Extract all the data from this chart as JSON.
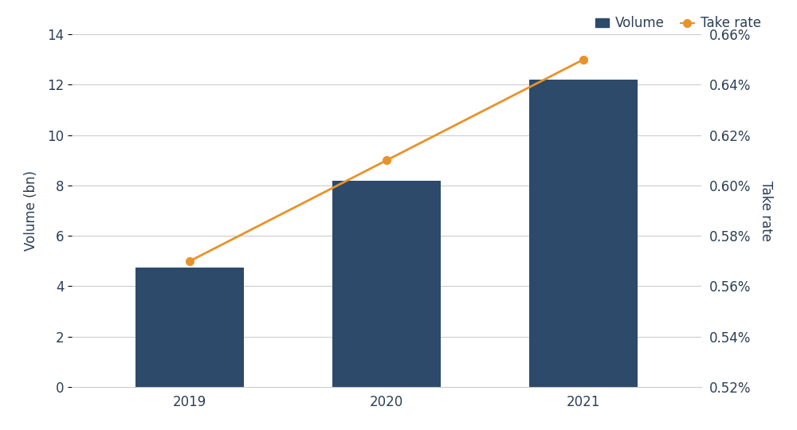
{
  "years": [
    2019,
    2020,
    2021
  ],
  "volume": [
    4.75,
    8.2,
    12.2
  ],
  "take_rate": [
    0.0057,
    0.0061,
    0.0065
  ],
  "bar_color": "#2d4a6b",
  "line_color": "#e8922a",
  "marker_color": "#e8922a",
  "background_color": "#ffffff",
  "grid_color": "#cccccc",
  "text_color": "#2d3f55",
  "ylabel_left": "Volume (bn)",
  "ylabel_right": "Take rate",
  "ylim_left": [
    0,
    14
  ],
  "ylim_right": [
    0.0052,
    0.0066
  ],
  "yticks_left": [
    0,
    2,
    4,
    6,
    8,
    10,
    12,
    14
  ],
  "yticks_right": [
    0.0052,
    0.0054,
    0.0056,
    0.0058,
    0.006,
    0.0062,
    0.0064,
    0.0066
  ],
  "ytick_right_labels": [
    "0.52%",
    "0.54%",
    "0.56%",
    "0.58%",
    "0.60%",
    "0.62%",
    "0.64%",
    "0.66%"
  ],
  "legend_volume": "Volume",
  "legend_take_rate": "Take rate",
  "bar_width": 0.55,
  "figsize": [
    10.0,
    5.4
  ],
  "dpi": 100,
  "axis_fontsize": 12,
  "tick_fontsize": 12,
  "legend_fontsize": 12
}
